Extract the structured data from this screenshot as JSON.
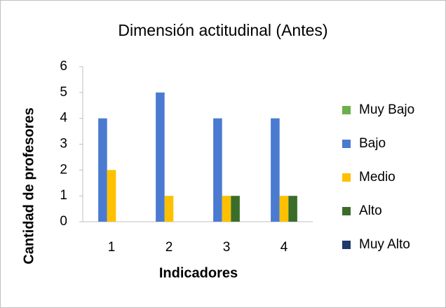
{
  "chart_data": {
    "type": "bar",
    "title": "Dimensión actitudinal (Antes)",
    "x_label": "Indicadores",
    "y_label": "Cantidad de profesores",
    "categories": [
      "1",
      "2",
      "3",
      "4"
    ],
    "series": [
      {
        "name": "Muy Bajo",
        "color": "#6ab04c",
        "values": [
          0,
          0,
          0,
          0
        ]
      },
      {
        "name": "Bajo",
        "color": "#4a7bd0",
        "values": [
          4,
          5,
          4,
          4
        ]
      },
      {
        "name": "Medio",
        "color": "#ffc000",
        "values": [
          2,
          1,
          1,
          1
        ]
      },
      {
        "name": "Alto",
        "color": "#3b6d2a",
        "values": [
          0,
          0,
          1,
          1
        ]
      },
      {
        "name": "Muy Alto",
        "color": "#1f3a6b",
        "values": [
          0,
          0,
          0,
          0
        ]
      }
    ],
    "ylim": [
      0,
      6
    ],
    "yticks": [
      0,
      1,
      2,
      3,
      4,
      5,
      6
    ],
    "grid": false,
    "legend": "right"
  }
}
